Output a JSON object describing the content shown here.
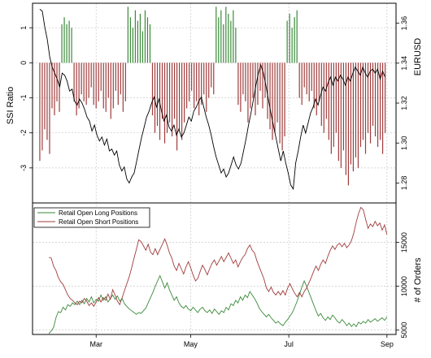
{
  "colors": {
    "long": "#3a8a3a",
    "short": "#a03c3c",
    "price": "#000000",
    "grid": "#c8c8c8",
    "frame": "#000000"
  },
  "chart_data": [
    {
      "type": "bar",
      "panel": "top",
      "ylabel_left": "SSI Ratio",
      "ylabel_right": "EURUSD",
      "ylim_left": [
        -4,
        1.7
      ],
      "yticks_left": [
        1,
        0,
        -1,
        -2,
        -3
      ],
      "ylim_right": [
        1.27,
        1.37
      ],
      "yticks_right": [
        1.36,
        1.34,
        1.32,
        1.3,
        1.28
      ],
      "grid": true,
      "series": [
        {
          "kind": "ssi_bars",
          "x_range": [
            0.02,
            0.97
          ],
          "values": [
            -2.8,
            -2.5,
            -1.9,
            -2.2,
            -2.6,
            -1.3,
            -1.5,
            -1.1,
            -1.4,
            1.1,
            1.3,
            1.1,
            1.2,
            1.0,
            -1.1,
            -1.5,
            -1.3,
            -0.9,
            -1.1,
            -1.2,
            -1.0,
            -0.7,
            -1.2,
            -1.3,
            -1.1,
            -0.8,
            -1.3,
            -1.4,
            -1.0,
            -1.6,
            -1.3,
            -0.8,
            -1.2,
            -0.9,
            -1.4,
            -1.1,
            1.6,
            1.3,
            1.0,
            1.5,
            1.2,
            1.4,
            0.9,
            1.5,
            1.3,
            1.1,
            -1.5,
            -2.0,
            -1.8,
            -2.2,
            -1.6,
            -2.3,
            -2.0,
            -1.7,
            -2.1,
            -1.6,
            -2.5,
            -1.9,
            -2.2,
            -1.7,
            -1.3,
            -1.1,
            -0.8,
            -1.3,
            -1.1,
            -1.5,
            -1.2,
            -0.9,
            -1.4,
            -1.0,
            -0.7,
            -0.9,
            1.6,
            1.3,
            1.5,
            1.1,
            1.6,
            1.4,
            1.2,
            1.5,
            1.0,
            -1.2,
            -1.4,
            -0.9,
            -1.1,
            -1.7,
            -1.3,
            -1.0,
            -1.5,
            -1.2,
            -0.8,
            -1.3,
            -1.0,
            -1.6,
            -1.9,
            -2.2,
            -2.0,
            -1.7,
            -2.3,
            -2.5,
            -2.1,
            1.2,
            1.4,
            1.0,
            1.3,
            1.5,
            -1.0,
            -1.2,
            -0.7,
            -0.9,
            -1.1,
            -0.8,
            -1.3,
            -1.5,
            -1.1,
            -1.8,
            -2.0,
            -1.6,
            -2.2,
            -2.6,
            -2.4,
            -2.0,
            -2.8,
            -3.0,
            -2.5,
            -3.2,
            -3.5,
            -2.9,
            -3.1,
            -2.7,
            -3.0,
            -2.4,
            -2.2,
            -2.6,
            -2.0,
            -2.3,
            -1.8,
            -2.1,
            -2.4,
            -2.2,
            -2.6,
            -2.0
          ]
        },
        {
          "kind": "eurusd_line",
          "x_range": [
            0.02,
            0.97
          ],
          "values": [
            1.367,
            1.366,
            1.358,
            1.352,
            1.343,
            1.338,
            1.335,
            1.332,
            1.328,
            1.335,
            1.334,
            1.331,
            1.326,
            1.327,
            1.321,
            1.319,
            1.322,
            1.32,
            1.317,
            1.313,
            1.311,
            1.306,
            1.309,
            1.304,
            1.301,
            1.303,
            1.299,
            1.302,
            1.296,
            1.297,
            1.294,
            1.296,
            1.289,
            1.286,
            1.288,
            1.282,
            1.28,
            1.283,
            1.285,
            1.291,
            1.297,
            1.303,
            1.308,
            1.313,
            1.316,
            1.32,
            1.323,
            1.318,
            1.322,
            1.316,
            1.311,
            1.314,
            1.308,
            1.306,
            1.309,
            1.304,
            1.307,
            1.303,
            1.305,
            1.309,
            1.313,
            1.311,
            1.316,
            1.318,
            1.321,
            1.323,
            1.318,
            1.313,
            1.309,
            1.304,
            1.298,
            1.293,
            1.289,
            1.285,
            1.287,
            1.283,
            1.285,
            1.289,
            1.293,
            1.289,
            1.287,
            1.29,
            1.296,
            1.302,
            1.309,
            1.315,
            1.322,
            1.329,
            1.335,
            1.339,
            1.335,
            1.329,
            1.322,
            1.315,
            1.309,
            1.303,
            1.297,
            1.291,
            1.296,
            1.29,
            1.285,
            1.279,
            1.277,
            1.29,
            1.296,
            1.303,
            1.309,
            1.305,
            1.31,
            1.315,
            1.318,
            1.322,
            1.319,
            1.324,
            1.328,
            1.326,
            1.33,
            1.333,
            1.329,
            1.333,
            1.331,
            1.334,
            1.332,
            1.329,
            1.333,
            1.331,
            1.335,
            1.338,
            1.336,
            1.334,
            1.338,
            1.335,
            1.333,
            1.336,
            1.337,
            1.335,
            1.337,
            1.332,
            1.336,
            1.333
          ]
        }
      ]
    },
    {
      "type": "line",
      "panel": "bottom",
      "ylabel_right": "# of Orders",
      "ylim": [
        4500,
        19500
      ],
      "yticks_right": [
        15000,
        10000,
        5000
      ],
      "xticks": [
        "Mar",
        "May",
        "Jul",
        "Sep"
      ],
      "grid": true,
      "legend_position": "top-left",
      "series": [
        {
          "name": "Retail Open Long Positions",
          "values": [
            4600,
            4900,
            5300,
            6400,
            7100,
            7000,
            7600,
            7300,
            7900,
            7700,
            8100,
            7900,
            8300,
            7900,
            8400,
            8000,
            8600,
            8200,
            8800,
            8100,
            8500,
            8300,
            9000,
            8400,
            8800,
            8200,
            8600,
            9000,
            8500,
            8900,
            8300,
            8600,
            8000,
            7700,
            7400,
            7200,
            7000,
            6800,
            7000,
            6900,
            7200,
            7500,
            8100,
            8700,
            9300,
            10000,
            10600,
            11200,
            10500,
            9800,
            10400,
            9600,
            9000,
            8400,
            8800,
            8100,
            7700,
            7500,
            7800,
            7400,
            7200,
            7600,
            7300,
            7000,
            7400,
            7600,
            7200,
            7000,
            7300,
            6900,
            7400,
            7100,
            6800,
            7200,
            7000,
            7600,
            7300,
            8000,
            7800,
            8400,
            8100,
            8800,
            8400,
            9000,
            8700,
            9400,
            9000,
            8600,
            8100,
            7500,
            7100,
            6800,
            6500,
            6800,
            6400,
            6100,
            5800,
            6000,
            5700,
            5500,
            5900,
            6200,
            6600,
            7000,
            7600,
            8300,
            9100,
            9900,
            10600,
            10000,
            9300,
            8600,
            7900,
            7200,
            6600,
            6900,
            6400,
            6100,
            6500,
            6200,
            6700,
            6400,
            6000,
            5800,
            6200,
            5900,
            5500,
            5800,
            5400,
            5700,
            5400,
            5900,
            5700,
            6000,
            5800,
            6200,
            5900,
            6100,
            6300,
            6000,
            6200,
            6400,
            6100,
            6500
          ]
        },
        {
          "name": "Retail Open Short Positions",
          "values": [
            13300,
            13200,
            12300,
            11800,
            11000,
            10500,
            10200,
            9600,
            9000,
            8600,
            8400,
            8100,
            7900,
            8300,
            8100,
            8600,
            8300,
            7800,
            8100,
            7700,
            8200,
            8700,
            8200,
            8700,
            8400,
            9100,
            8500,
            9600,
            9000,
            8300,
            7900,
            8700,
            9500,
            10300,
            11100,
            12100,
            13200,
            14200,
            15300,
            15100,
            14600,
            14100,
            14800,
            13900,
            13600,
            14300,
            13600,
            14200,
            14800,
            15400,
            14700,
            13800,
            13200,
            12300,
            11800,
            12600,
            12000,
            11400,
            12200,
            12800,
            12100,
            11300,
            10600,
            10900,
            11700,
            12400,
            11900,
            11300,
            12000,
            12600,
            13000,
            12400,
            12900,
            13400,
            12800,
            13300,
            13800,
            13200,
            12600,
            13000,
            12200,
            12800,
            13300,
            13600,
            14300,
            14700,
            14100,
            13800,
            12900,
            12200,
            11500,
            10800,
            9800,
            9400,
            9900,
            9300,
            9000,
            9400,
            9000,
            9500,
            9000,
            9800,
            10300,
            9700,
            9200,
            8800,
            9300,
            8800,
            9400,
            9800,
            10400,
            11000,
            11700,
            12300,
            11800,
            12500,
            13000,
            12600,
            13400,
            14100,
            14600,
            14200,
            14700,
            14900,
            14500,
            14900,
            14400,
            14700,
            15200,
            16100,
            17300,
            18300,
            19000,
            18700,
            17600,
            16600,
            17100,
            16800,
            17400,
            16900,
            17200,
            16400,
            17000,
            15900
          ]
        }
      ]
    }
  ]
}
